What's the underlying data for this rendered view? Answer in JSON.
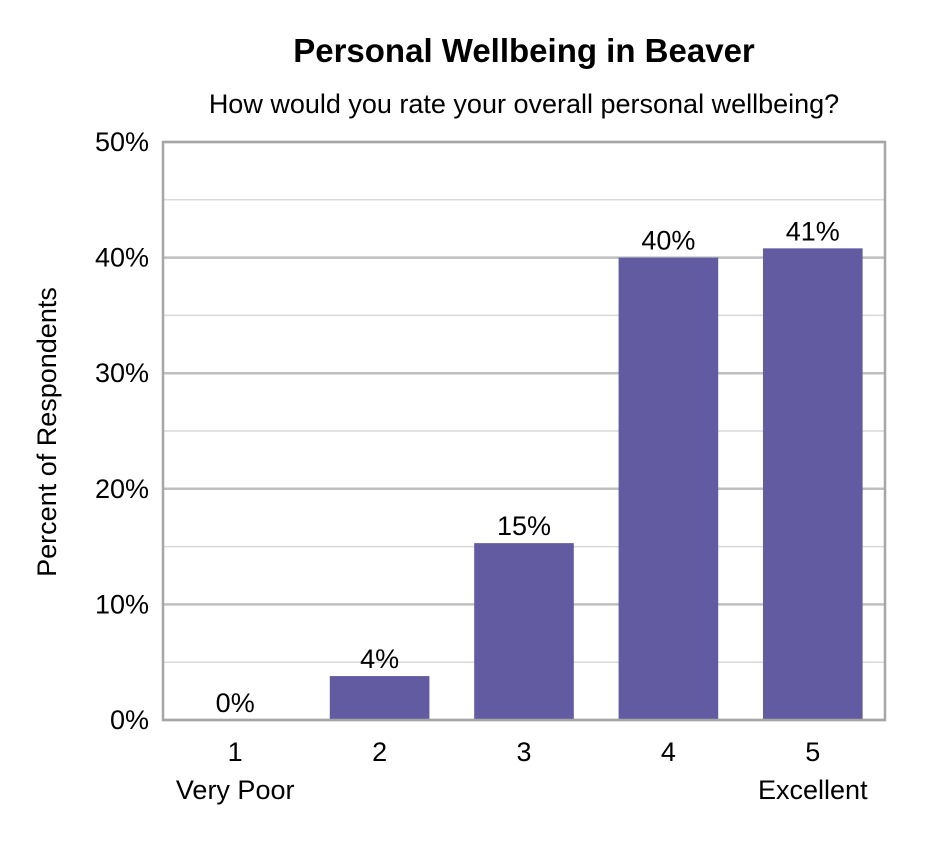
{
  "chart_data": {
    "type": "bar",
    "title": "Personal Wellbeing in Beaver",
    "subtitle": "How would you rate your overall personal wellbeing?",
    "ylabel": "Percent of Respondents",
    "xlabel": "",
    "categories": [
      "1",
      "2",
      "3",
      "4",
      "5"
    ],
    "category_sublabels": [
      "Very Poor",
      "",
      "",
      "",
      "Excellent"
    ],
    "values": [
      0,
      4,
      15,
      40,
      41
    ],
    "value_labels": [
      "0%",
      "4%",
      "15%",
      "40%",
      "41%"
    ],
    "bar_values_precise": [
      0,
      3.8,
      15.3,
      40.0,
      40.8
    ],
    "ylim": [
      0,
      50
    ],
    "y_ticks": [
      0,
      10,
      20,
      30,
      40,
      50
    ],
    "y_tick_labels": [
      "0%",
      "10%",
      "20%",
      "30%",
      "40%",
      "50%"
    ],
    "grid": true,
    "legend": "none",
    "bar_color": "#635BA2",
    "grid_color": "#BFBFBF",
    "border_color": "#A6A6A6"
  }
}
